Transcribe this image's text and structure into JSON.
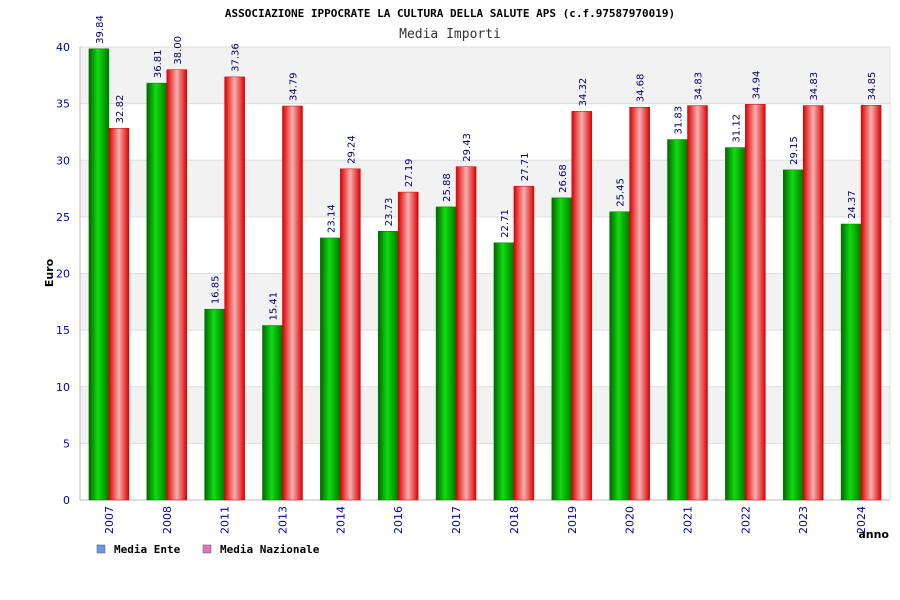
{
  "chart_data": {
    "type": "bar",
    "title": "ASSOCIAZIONE IPPOCRATE LA CULTURA DELLA SALUTE APS (c.f.97587970019)",
    "subtitle": "Media Importi",
    "xlabel": "anno",
    "ylabel": "Euro",
    "ylim": [
      0,
      40
    ],
    "yticks": [
      0,
      5,
      10,
      15,
      20,
      25,
      30,
      35,
      40
    ],
    "grid": true,
    "legend_position": "bottom-left",
    "categories": [
      "2007",
      "2008",
      "2011",
      "2013",
      "2014",
      "2016",
      "2017",
      "2018",
      "2019",
      "2020",
      "2021",
      "2022",
      "2023",
      "2024"
    ],
    "series": [
      {
        "name": "Media Ente",
        "color": "#00b000",
        "legend_color": "#6699ee",
        "values": [
          39.84,
          36.81,
          16.85,
          15.41,
          23.14,
          23.73,
          25.88,
          22.71,
          26.68,
          25.45,
          31.83,
          31.12,
          29.15,
          24.37
        ],
        "labels": [
          "39.84",
          "36.81",
          "16.85",
          "15.41",
          "23.14",
          "23.73",
          "25.88",
          "22.71",
          "26.68",
          "25.45",
          "31.83",
          "31.12",
          "29.15",
          "24.37"
        ]
      },
      {
        "name": "Media Nazionale",
        "color": "#ee1111",
        "legend_color": "#dd77bb",
        "values": [
          32.82,
          38.0,
          37.36,
          34.79,
          29.24,
          27.19,
          29.43,
          27.71,
          34.32,
          34.68,
          34.83,
          34.94,
          34.83,
          34.85
        ],
        "labels": [
          "32.82",
          "38.00",
          "37.36",
          "34.79",
          "29.24",
          "27.19",
          "29.43",
          "27.71",
          "34.32",
          "34.68",
          "34.83",
          "34.94",
          "34.83",
          "34.85"
        ]
      }
    ]
  }
}
